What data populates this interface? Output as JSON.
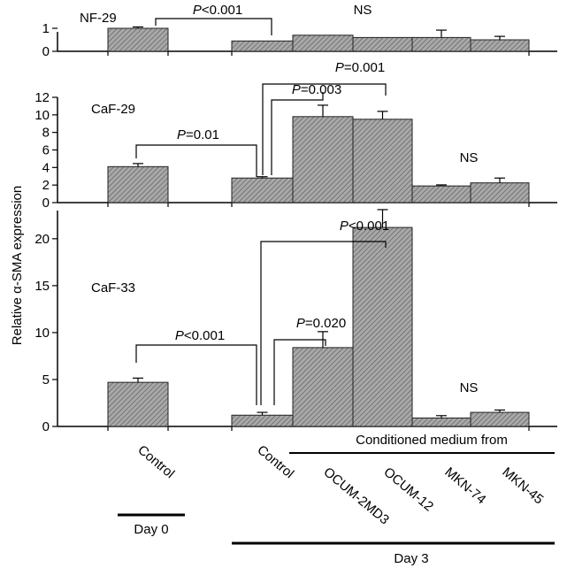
{
  "chart_data": [
    {
      "type": "bar",
      "panel_label": "NF-29",
      "categories": [
        "Control (Day 0)",
        "Control (Day 3)",
        "OCUM-2MD3",
        "OCUM-12",
        "MKN-74",
        "MKN-45"
      ],
      "values": [
        1.0,
        0.45,
        0.7,
        0.6,
        0.6,
        0.5
      ],
      "errors": [
        0.06,
        0.0,
        0.0,
        0.0,
        0.32,
        0.15
      ],
      "yticks": [
        0,
        1
      ],
      "ylim": [
        0,
        1.6
      ],
      "annotations": [
        {
          "text": "P<0.001",
          "kind": "bracket"
        },
        {
          "text": "NS",
          "kind": "label"
        }
      ]
    },
    {
      "type": "bar",
      "panel_label": "CaF-29",
      "categories": [
        "Control (Day 0)",
        "Control (Day 3)",
        "OCUM-2MD3",
        "OCUM-12",
        "MKN-74",
        "MKN-45"
      ],
      "values": [
        4.1,
        2.8,
        9.8,
        9.5,
        1.9,
        2.25
      ],
      "errors": [
        0.35,
        0.15,
        1.3,
        0.9,
        0.12,
        0.55
      ],
      "yticks": [
        0,
        2,
        4,
        6,
        8,
        10,
        12
      ],
      "ylim": [
        0,
        12
      ],
      "annotations": [
        {
          "text": "P=0.01",
          "kind": "bracket"
        },
        {
          "text": "P=0.003",
          "kind": "bracket"
        },
        {
          "text": "P=0.001",
          "kind": "bracket"
        },
        {
          "text": "NS",
          "kind": "label"
        }
      ]
    },
    {
      "type": "bar",
      "panel_label": "CaF-33",
      "categories": [
        "Control (Day 0)",
        "Control (Day 3)",
        "OCUM-2MD3",
        "OCUM-12",
        "MKN-74",
        "MKN-45"
      ],
      "values": [
        4.7,
        1.2,
        8.4,
        21.2,
        0.9,
        1.5
      ],
      "errors": [
        0.45,
        0.3,
        1.7,
        1.9,
        0.25,
        0.25
      ],
      "yticks": [
        0,
        5,
        10,
        15,
        20
      ],
      "ylim": [
        0,
        23
      ],
      "annotations": [
        {
          "text": "P<0.001",
          "kind": "bracket"
        },
        {
          "text": "P=0.020",
          "kind": "bracket"
        },
        {
          "text": "P<0.001",
          "kind": "bracket"
        },
        {
          "text": "NS",
          "kind": "label"
        }
      ]
    }
  ],
  "ylabel": "Relative α-SMA expression",
  "x_tick_labels": [
    "Control",
    "Control",
    "OCUM-2MD3",
    "OCUM-12",
    "MKN-74",
    "MKN-45"
  ],
  "group_labels": {
    "conditioned": "Conditioned medium from",
    "day0": "Day 0",
    "day3": "Day 3"
  },
  "colors": {
    "bar_fill": "#a8a8a8",
    "hatch": "#555555"
  }
}
